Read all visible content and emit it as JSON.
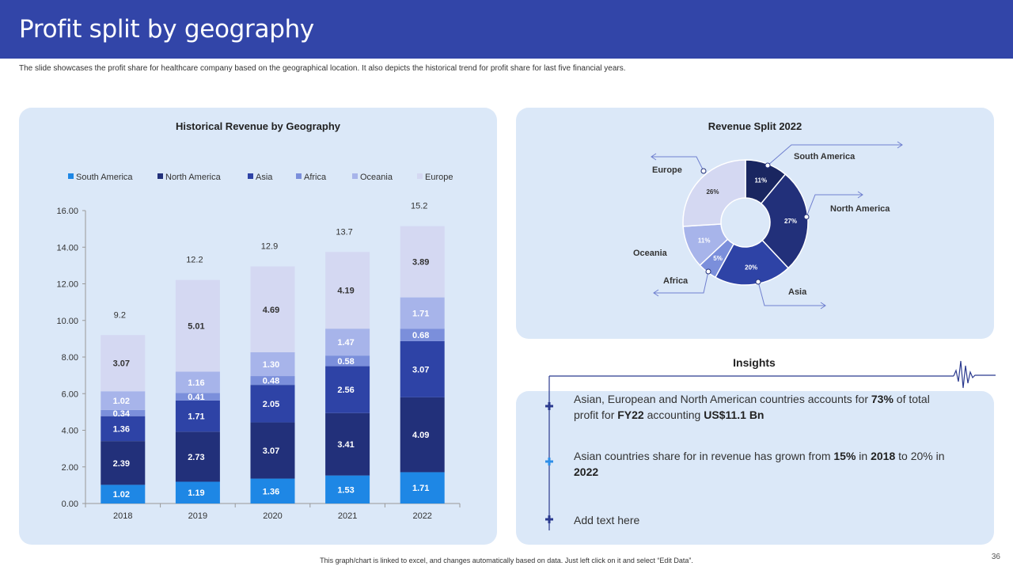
{
  "header": {
    "title": "Profit split by geography"
  },
  "subtitle": "The slide showcases the profit share for healthcare company based on the geographical location. It also depicts the historical trend for profit share for last five financial years.",
  "chart_data": [
    {
      "type": "bar",
      "stacked": true,
      "title": "Historical Revenue by Geography",
      "categories": [
        "2018",
        "2019",
        "2020",
        "2021",
        "2022"
      ],
      "series": [
        {
          "name": "South America",
          "color": "#1e87e5",
          "values": [
            1.02,
            1.19,
            1.36,
            1.53,
            1.71
          ],
          "labels": [
            "1.02",
            "1.19",
            "1.36",
            "1.53",
            "1.71"
          ]
        },
        {
          "name": "North America",
          "color": "#22307a",
          "values": [
            2.39,
            2.73,
            3.07,
            3.41,
            4.09
          ],
          "labels": [
            "2.39",
            "2.73",
            "3.07",
            "3.41",
            "4.09"
          ]
        },
        {
          "name": "Asia",
          "color": "#2e43a6",
          "values": [
            1.36,
            1.71,
            2.05,
            2.56,
            3.07
          ],
          "labels": [
            "1.36",
            "1.71",
            "2.05",
            "2.56",
            "3.07"
          ]
        },
        {
          "name": "Africa",
          "color": "#7b8fdb",
          "values": [
            0.34,
            0.41,
            0.48,
            0.58,
            0.68
          ],
          "labels": [
            "0.34",
            "0.41",
            "0.48",
            "0.58",
            "0.68"
          ]
        },
        {
          "name": "Oceania",
          "color": "#a7b4ea",
          "values": [
            1.02,
            1.16,
            1.3,
            1.47,
            1.71
          ],
          "labels": [
            "1.02",
            "1.16",
            "1.30",
            "1.47",
            "1.71"
          ]
        },
        {
          "name": "Europe",
          "color": "#d4d8f2",
          "values": [
            3.07,
            5.01,
            4.69,
            4.19,
            3.89
          ],
          "labels": [
            "3.07",
            "5.01",
            "4.69",
            "4.19",
            "3.89"
          ]
        }
      ],
      "totals": [
        "9.2",
        "12.2",
        "12.9",
        "13.7",
        "15.2"
      ],
      "ylim": [
        0,
        16
      ],
      "yticks": [
        "0.00",
        "2.00",
        "4.00",
        "6.00",
        "8.00",
        "10.00",
        "12.00",
        "14.00",
        "16.00"
      ],
      "legend": "top",
      "grid": false
    },
    {
      "type": "pie",
      "donut": true,
      "title": "Revenue Split 2022",
      "slices": [
        {
          "name": "South America",
          "value": 11,
          "label": "11%",
          "color": "#1a2660"
        },
        {
          "name": "North America",
          "value": 27,
          "label": "27%",
          "color": "#22307a"
        },
        {
          "name": "Asia",
          "value": 20,
          "label": "20%",
          "color": "#2e43a6"
        },
        {
          "name": "Africa",
          "value": 5,
          "label": "5%",
          "color": "#7b8fdb"
        },
        {
          "name": "Oceania",
          "value": 11,
          "label": "11%",
          "color": "#a7b4ea"
        },
        {
          "name": "Europe",
          "value": 26,
          "label": "26%",
          "color": "#d4d8f2"
        }
      ]
    }
  ],
  "insights": {
    "title": "Insights",
    "items": [
      {
        "p1": "Asian, European and North American countries accounts for ",
        "b1": "73%",
        "p2": " of total profit for ",
        "b2": "FY22",
        "p3": " accounting ",
        "b3": "US$11.1 Bn"
      },
      {
        "p1": "Asian countries share for in revenue has grown from ",
        "b1": "15%",
        "p2": " in ",
        "b2": "2018",
        "p3": " to 20% in ",
        "b3": "2022"
      },
      {
        "text": "Add text here"
      }
    ]
  },
  "footer": "This graph/chart is linked to excel, and changes automatically based on data. Just left click on it and select “Edit Data”.",
  "page_number": "36",
  "colors": {
    "header": "#3245a8",
    "panel": "#dbe8f8",
    "accent": "#2b3a8f"
  }
}
